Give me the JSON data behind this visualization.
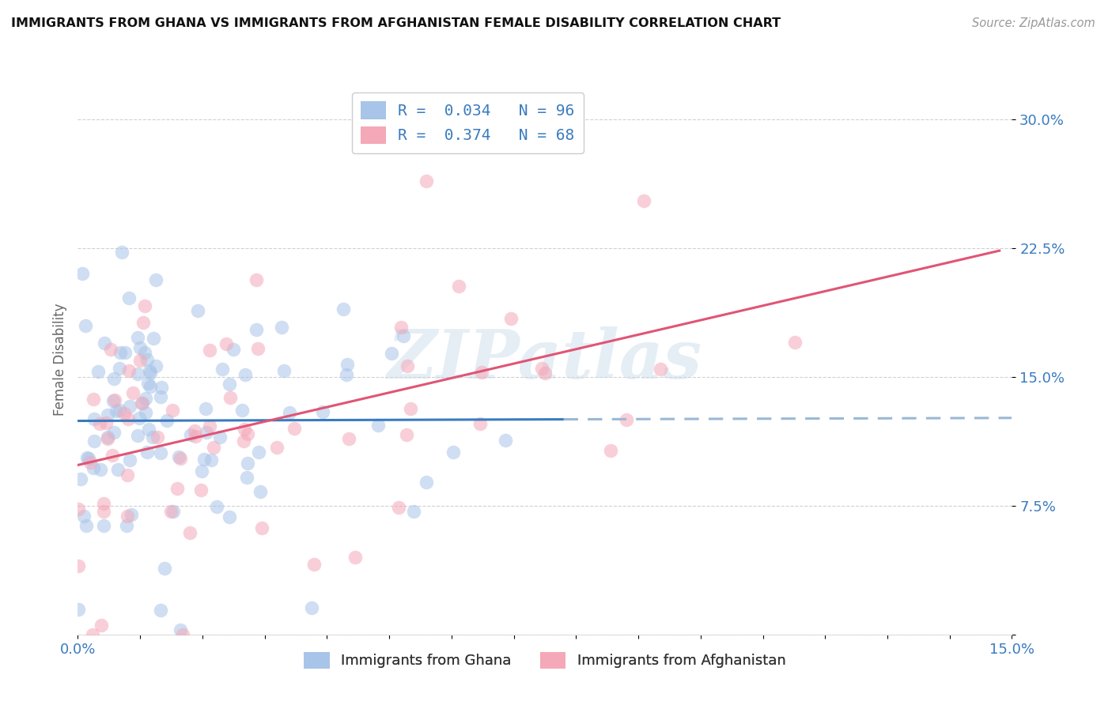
{
  "title": "IMMIGRANTS FROM GHANA VS IMMIGRANTS FROM AFGHANISTAN FEMALE DISABILITY CORRELATION CHART",
  "source": "Source: ZipAtlas.com",
  "ylabel": "Female Disability",
  "xlim": [
    0.0,
    0.15
  ],
  "ylim": [
    0.0,
    0.32
  ],
  "yticks": [
    0.0,
    0.075,
    0.15,
    0.225,
    0.3
  ],
  "ytick_labels": [
    "",
    "7.5%",
    "15.0%",
    "22.5%",
    "30.0%"
  ],
  "ghana_color": "#a8c4e8",
  "afghanistan_color": "#f4a8b8",
  "ghana_R": 0.034,
  "ghana_N": 96,
  "afghanistan_R": 0.374,
  "afghanistan_N": 68,
  "ghana_line_color": "#3a7bbf",
  "afghanistan_line_color": "#e05575",
  "ghana_dashed_color": "#9ab8d4",
  "legend_label_ghana": "Immigrants from Ghana",
  "legend_label_afghanistan": "Immigrants from Afghanistan",
  "watermark": "ZIPatlas",
  "legend_R_N_color": "#3a7bbf",
  "tick_color": "#3a7bbf",
  "title_color": "#111111",
  "source_color": "#999999",
  "ylabel_color": "#666666",
  "grid_color": "#cccccc",
  "scatter_size": 160,
  "scatter_alpha": 0.55,
  "ghana_line_end_x": 0.078,
  "afg_line_end_x": 0.148
}
